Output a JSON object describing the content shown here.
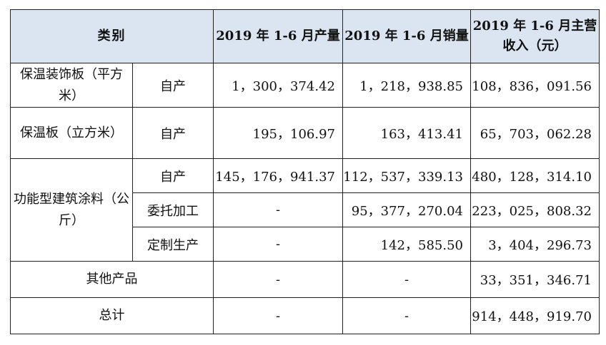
{
  "table": {
    "headers": {
      "category": "类别",
      "production": "2019 年 1-6 月产量",
      "sales": "2019 年 1-6 月销量",
      "revenue": "2019 年 1-6 月主营收入（元）"
    },
    "rows": {
      "r1": {
        "category": "保温装饰板（平方米）",
        "sub": "自产",
        "production": "1，300，374.42",
        "sales": "1，218，938.85",
        "revenue": "108，836，091.56"
      },
      "r2": {
        "category": "保温板（立方米）",
        "sub": "自产",
        "production": "195，106.97",
        "sales": "163，413.41",
        "revenue": "65，703，062.28"
      },
      "r3": {
        "category": "功能型建筑涂料（公斤）",
        "sub": "自产",
        "production": "145，176，941.37",
        "sales": "112，537，339.13",
        "revenue": "480，128，314.10"
      },
      "r4": {
        "sub": "委托加工",
        "production": "-",
        "sales": "95，377，270.04",
        "revenue": "223，025，808.32"
      },
      "r5": {
        "sub": "定制生产",
        "production": "-",
        "sales": "142，585.50",
        "revenue": "3，404，296.73"
      },
      "r6": {
        "category": "其他产品",
        "production": "-",
        "sales": "-",
        "revenue": "33，351，346.71"
      },
      "r7": {
        "category": "总计",
        "production": "-",
        "sales": "-",
        "revenue": "914，448，919.70"
      }
    }
  }
}
